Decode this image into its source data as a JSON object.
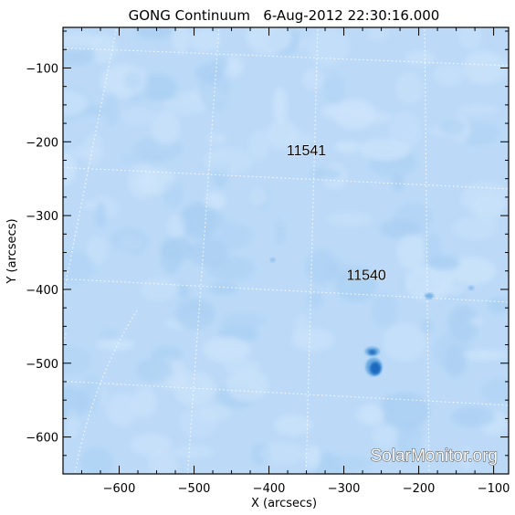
{
  "title": "GONG Continuum   6-Aug-2012 22:30:16.000",
  "axes": {
    "xlabel": "X (arcsecs)",
    "ylabel": "Y (arcsecs)",
    "xlim": [
      -675,
      -80
    ],
    "ylim": [
      -650,
      -45
    ],
    "xticks": [
      -600,
      -500,
      -400,
      -300,
      -200,
      -100
    ],
    "yticks": [
      -600,
      -500,
      -400,
      -300,
      -200,
      -100
    ],
    "xtick_labels": [
      "−600",
      "−500",
      "−400",
      "−300",
      "−200",
      "−100"
    ],
    "ytick_labels": [
      "−600",
      "−500",
      "−400",
      "−300",
      "−200",
      "−100"
    ]
  },
  "regions": [
    {
      "number": "11541",
      "x": -350,
      "y": -218
    },
    {
      "number": "11540",
      "x": -270,
      "y": -387
    }
  ],
  "watermark": "SolarMonitor.org",
  "colors": {
    "disk": "#bcdaf8",
    "disk_light": "#cde4fb",
    "disk_dark": "#a9cff2",
    "spot_penumbra": "#5aa2de",
    "spot_umbra": "#1f6bc0",
    "grid": "#ffffff"
  }
}
